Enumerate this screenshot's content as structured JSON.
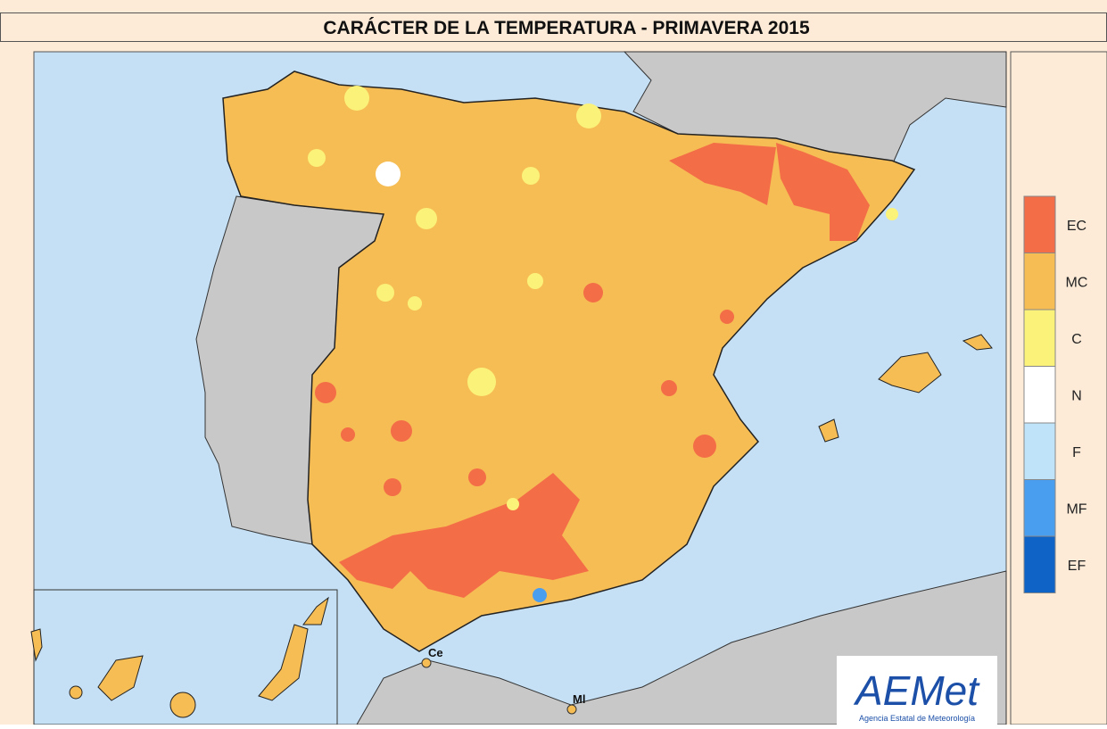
{
  "title": "CARÁCTER DE LA TEMPERATURA - PRIMAVERA 2015",
  "legend": {
    "items": [
      {
        "label": "EC",
        "color": "#f36d47"
      },
      {
        "label": "MC",
        "color": "#f7bd55"
      },
      {
        "label": "C",
        "color": "#fbf27a"
      },
      {
        "label": "N",
        "color": "#ffffff"
      },
      {
        "label": "F",
        "color": "#bfe3f9"
      },
      {
        "label": "MF",
        "color": "#4a9ef0"
      },
      {
        "label": "EF",
        "color": "#0f63c6"
      }
    ]
  },
  "map_labels": [
    "Ce",
    "Ml"
  ],
  "logo": {
    "text": "AEMet",
    "subtitle": "Agencia Estatal de Meteorología"
  }
}
